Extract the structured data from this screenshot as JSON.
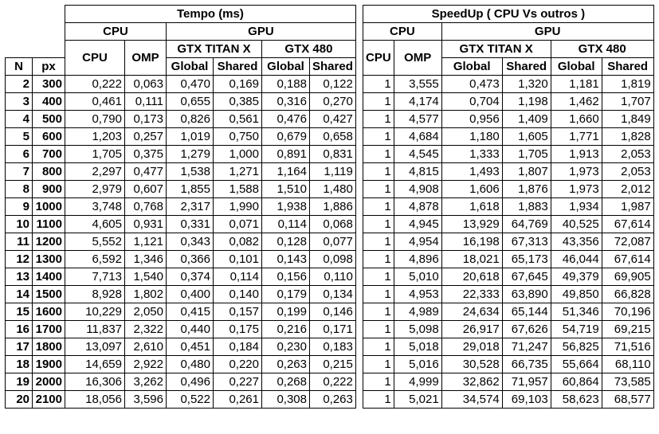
{
  "left": {
    "title": "Tempo (ms)",
    "cpu_group": "CPU",
    "gpu_group": "GPU",
    "gpu1": "GTX TITAN X",
    "gpu2": "GTX 480",
    "col_n": "N",
    "col_px": "px",
    "col_cpu": "CPU",
    "col_omp": "OMP",
    "col_global": "Global",
    "col_shared": "Shared"
  },
  "right": {
    "title": "SpeedUp ( CPU Vs outros )",
    "cpu_group": "CPU",
    "gpu_group": "GPU",
    "gpu1": "GTX TITAN X",
    "gpu2": "GTX 480",
    "col_cpu": "CPU",
    "col_omp": "OMP",
    "col_global": "Global",
    "col_shared": "Shared"
  },
  "rows": [
    {
      "n": "2",
      "px": "300",
      "t": [
        "0,222",
        "0,063",
        "0,470",
        "0,169",
        "0,188",
        "0,122"
      ],
      "s": [
        "1",
        "3,555",
        "0,473",
        "1,320",
        "1,181",
        "1,819"
      ]
    },
    {
      "n": "3",
      "px": "400",
      "t": [
        "0,461",
        "0,111",
        "0,655",
        "0,385",
        "0,316",
        "0,270"
      ],
      "s": [
        "1",
        "4,174",
        "0,704",
        "1,198",
        "1,462",
        "1,707"
      ]
    },
    {
      "n": "4",
      "px": "500",
      "t": [
        "0,790",
        "0,173",
        "0,826",
        "0,561",
        "0,476",
        "0,427"
      ],
      "s": [
        "1",
        "4,577",
        "0,956",
        "1,409",
        "1,660",
        "1,849"
      ]
    },
    {
      "n": "5",
      "px": "600",
      "t": [
        "1,203",
        "0,257",
        "1,019",
        "0,750",
        "0,679",
        "0,658"
      ],
      "s": [
        "1",
        "4,684",
        "1,180",
        "1,605",
        "1,771",
        "1,828"
      ]
    },
    {
      "n": "6",
      "px": "700",
      "t": [
        "1,705",
        "0,375",
        "1,279",
        "1,000",
        "0,891",
        "0,831"
      ],
      "s": [
        "1",
        "4,545",
        "1,333",
        "1,705",
        "1,913",
        "2,053"
      ]
    },
    {
      "n": "7",
      "px": "800",
      "t": [
        "2,297",
        "0,477",
        "1,538",
        "1,271",
        "1,164",
        "1,119"
      ],
      "s": [
        "1",
        "4,815",
        "1,493",
        "1,807",
        "1,973",
        "2,053"
      ]
    },
    {
      "n": "8",
      "px": "900",
      "t": [
        "2,979",
        "0,607",
        "1,855",
        "1,588",
        "1,510",
        "1,480"
      ],
      "s": [
        "1",
        "4,908",
        "1,606",
        "1,876",
        "1,973",
        "2,012"
      ]
    },
    {
      "n": "9",
      "px": "1000",
      "t": [
        "3,748",
        "0,768",
        "2,317",
        "1,990",
        "1,938",
        "1,886"
      ],
      "s": [
        "1",
        "4,878",
        "1,618",
        "1,883",
        "1,934",
        "1,987"
      ]
    },
    {
      "n": "10",
      "px": "1100",
      "t": [
        "4,605",
        "0,931",
        "0,331",
        "0,071",
        "0,114",
        "0,068"
      ],
      "s": [
        "1",
        "4,945",
        "13,929",
        "64,769",
        "40,525",
        "67,614"
      ]
    },
    {
      "n": "11",
      "px": "1200",
      "t": [
        "5,552",
        "1,121",
        "0,343",
        "0,082",
        "0,128",
        "0,077"
      ],
      "s": [
        "1",
        "4,954",
        "16,198",
        "67,313",
        "43,356",
        "72,087"
      ]
    },
    {
      "n": "12",
      "px": "1300",
      "t": [
        "6,592",
        "1,346",
        "0,366",
        "0,101",
        "0,143",
        "0,098"
      ],
      "s": [
        "1",
        "4,896",
        "18,021",
        "65,173",
        "46,044",
        "67,614"
      ]
    },
    {
      "n": "13",
      "px": "1400",
      "t": [
        "7,713",
        "1,540",
        "0,374",
        "0,114",
        "0,156",
        "0,110"
      ],
      "s": [
        "1",
        "5,010",
        "20,618",
        "67,645",
        "49,379",
        "69,905"
      ]
    },
    {
      "n": "14",
      "px": "1500",
      "t": [
        "8,928",
        "1,802",
        "0,400",
        "0,140",
        "0,179",
        "0,134"
      ],
      "s": [
        "1",
        "4,953",
        "22,333",
        "63,890",
        "49,850",
        "66,828"
      ]
    },
    {
      "n": "15",
      "px": "1600",
      "t": [
        "10,229",
        "2,050",
        "0,415",
        "0,157",
        "0,199",
        "0,146"
      ],
      "s": [
        "1",
        "4,989",
        "24,634",
        "65,144",
        "51,346",
        "70,196"
      ]
    },
    {
      "n": "16",
      "px": "1700",
      "t": [
        "11,837",
        "2,322",
        "0,440",
        "0,175",
        "0,216",
        "0,171"
      ],
      "s": [
        "1",
        "5,098",
        "26,917",
        "67,626",
        "54,719",
        "69,215"
      ]
    },
    {
      "n": "17",
      "px": "1800",
      "t": [
        "13,097",
        "2,610",
        "0,451",
        "0,184",
        "0,230",
        "0,183"
      ],
      "s": [
        "1",
        "5,018",
        "29,018",
        "71,247",
        "56,825",
        "71,516"
      ]
    },
    {
      "n": "18",
      "px": "1900",
      "t": [
        "14,659",
        "2,922",
        "0,480",
        "0,220",
        "0,263",
        "0,215"
      ],
      "s": [
        "1",
        "5,016",
        "30,528",
        "66,735",
        "55,664",
        "68,110"
      ]
    },
    {
      "n": "19",
      "px": "2000",
      "t": [
        "16,306",
        "3,262",
        "0,496",
        "0,227",
        "0,268",
        "0,222"
      ],
      "s": [
        "1",
        "4,999",
        "32,862",
        "71,957",
        "60,864",
        "73,585"
      ]
    },
    {
      "n": "20",
      "px": "2100",
      "t": [
        "18,056",
        "3,596",
        "0,522",
        "0,261",
        "0,308",
        "0,263"
      ],
      "s": [
        "1",
        "5,021",
        "34,574",
        "69,103",
        "58,623",
        "68,577"
      ]
    }
  ]
}
